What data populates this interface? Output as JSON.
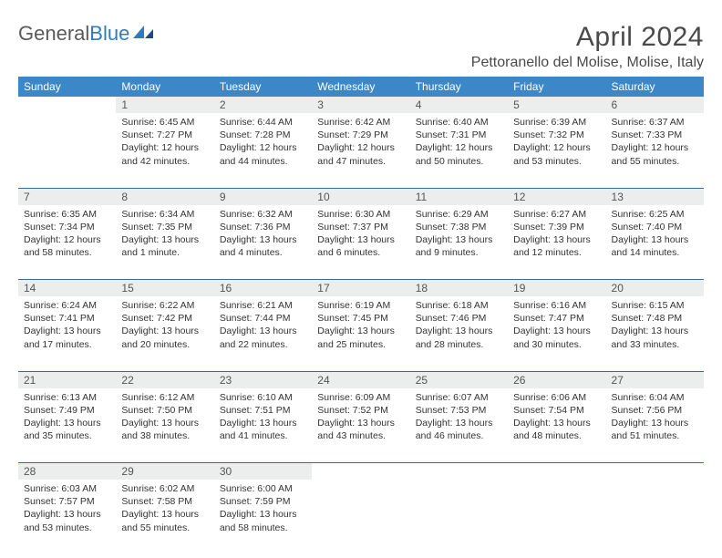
{
  "logo": {
    "text_gray": "General",
    "text_blue": "Blue"
  },
  "title": "April 2024",
  "location": "Pettoranello del Molise, Molise, Italy",
  "colors": {
    "header_bg": "#3b87c8",
    "header_text": "#ffffff",
    "daynum_bg": "#eceded",
    "row_divider": "#3b6a94",
    "logo_gray": "#5a5a5a",
    "logo_blue": "#2f7bbf",
    "body_text": "#333333"
  },
  "day_headers": [
    "Sunday",
    "Monday",
    "Tuesday",
    "Wednesday",
    "Thursday",
    "Friday",
    "Saturday"
  ],
  "weeks": [
    [
      {
        "n": "",
        "sr": "",
        "ss": "",
        "dl": ""
      },
      {
        "n": "1",
        "sr": "Sunrise: 6:45 AM",
        "ss": "Sunset: 7:27 PM",
        "dl": "Daylight: 12 hours and 42 minutes."
      },
      {
        "n": "2",
        "sr": "Sunrise: 6:44 AM",
        "ss": "Sunset: 7:28 PM",
        "dl": "Daylight: 12 hours and 44 minutes."
      },
      {
        "n": "3",
        "sr": "Sunrise: 6:42 AM",
        "ss": "Sunset: 7:29 PM",
        "dl": "Daylight: 12 hours and 47 minutes."
      },
      {
        "n": "4",
        "sr": "Sunrise: 6:40 AM",
        "ss": "Sunset: 7:31 PM",
        "dl": "Daylight: 12 hours and 50 minutes."
      },
      {
        "n": "5",
        "sr": "Sunrise: 6:39 AM",
        "ss": "Sunset: 7:32 PM",
        "dl": "Daylight: 12 hours and 53 minutes."
      },
      {
        "n": "6",
        "sr": "Sunrise: 6:37 AM",
        "ss": "Sunset: 7:33 PM",
        "dl": "Daylight: 12 hours and 55 minutes."
      }
    ],
    [
      {
        "n": "7",
        "sr": "Sunrise: 6:35 AM",
        "ss": "Sunset: 7:34 PM",
        "dl": "Daylight: 12 hours and 58 minutes."
      },
      {
        "n": "8",
        "sr": "Sunrise: 6:34 AM",
        "ss": "Sunset: 7:35 PM",
        "dl": "Daylight: 13 hours and 1 minute."
      },
      {
        "n": "9",
        "sr": "Sunrise: 6:32 AM",
        "ss": "Sunset: 7:36 PM",
        "dl": "Daylight: 13 hours and 4 minutes."
      },
      {
        "n": "10",
        "sr": "Sunrise: 6:30 AM",
        "ss": "Sunset: 7:37 PM",
        "dl": "Daylight: 13 hours and 6 minutes."
      },
      {
        "n": "11",
        "sr": "Sunrise: 6:29 AM",
        "ss": "Sunset: 7:38 PM",
        "dl": "Daylight: 13 hours and 9 minutes."
      },
      {
        "n": "12",
        "sr": "Sunrise: 6:27 AM",
        "ss": "Sunset: 7:39 PM",
        "dl": "Daylight: 13 hours and 12 minutes."
      },
      {
        "n": "13",
        "sr": "Sunrise: 6:25 AM",
        "ss": "Sunset: 7:40 PM",
        "dl": "Daylight: 13 hours and 14 minutes."
      }
    ],
    [
      {
        "n": "14",
        "sr": "Sunrise: 6:24 AM",
        "ss": "Sunset: 7:41 PM",
        "dl": "Daylight: 13 hours and 17 minutes."
      },
      {
        "n": "15",
        "sr": "Sunrise: 6:22 AM",
        "ss": "Sunset: 7:42 PM",
        "dl": "Daylight: 13 hours and 20 minutes."
      },
      {
        "n": "16",
        "sr": "Sunrise: 6:21 AM",
        "ss": "Sunset: 7:44 PM",
        "dl": "Daylight: 13 hours and 22 minutes."
      },
      {
        "n": "17",
        "sr": "Sunrise: 6:19 AM",
        "ss": "Sunset: 7:45 PM",
        "dl": "Daylight: 13 hours and 25 minutes."
      },
      {
        "n": "18",
        "sr": "Sunrise: 6:18 AM",
        "ss": "Sunset: 7:46 PM",
        "dl": "Daylight: 13 hours and 28 minutes."
      },
      {
        "n": "19",
        "sr": "Sunrise: 6:16 AM",
        "ss": "Sunset: 7:47 PM",
        "dl": "Daylight: 13 hours and 30 minutes."
      },
      {
        "n": "20",
        "sr": "Sunrise: 6:15 AM",
        "ss": "Sunset: 7:48 PM",
        "dl": "Daylight: 13 hours and 33 minutes."
      }
    ],
    [
      {
        "n": "21",
        "sr": "Sunrise: 6:13 AM",
        "ss": "Sunset: 7:49 PM",
        "dl": "Daylight: 13 hours and 35 minutes."
      },
      {
        "n": "22",
        "sr": "Sunrise: 6:12 AM",
        "ss": "Sunset: 7:50 PM",
        "dl": "Daylight: 13 hours and 38 minutes."
      },
      {
        "n": "23",
        "sr": "Sunrise: 6:10 AM",
        "ss": "Sunset: 7:51 PM",
        "dl": "Daylight: 13 hours and 41 minutes."
      },
      {
        "n": "24",
        "sr": "Sunrise: 6:09 AM",
        "ss": "Sunset: 7:52 PM",
        "dl": "Daylight: 13 hours and 43 minutes."
      },
      {
        "n": "25",
        "sr": "Sunrise: 6:07 AM",
        "ss": "Sunset: 7:53 PM",
        "dl": "Daylight: 13 hours and 46 minutes."
      },
      {
        "n": "26",
        "sr": "Sunrise: 6:06 AM",
        "ss": "Sunset: 7:54 PM",
        "dl": "Daylight: 13 hours and 48 minutes."
      },
      {
        "n": "27",
        "sr": "Sunrise: 6:04 AM",
        "ss": "Sunset: 7:56 PM",
        "dl": "Daylight: 13 hours and 51 minutes."
      }
    ],
    [
      {
        "n": "28",
        "sr": "Sunrise: 6:03 AM",
        "ss": "Sunset: 7:57 PM",
        "dl": "Daylight: 13 hours and 53 minutes."
      },
      {
        "n": "29",
        "sr": "Sunrise: 6:02 AM",
        "ss": "Sunset: 7:58 PM",
        "dl": "Daylight: 13 hours and 55 minutes."
      },
      {
        "n": "30",
        "sr": "Sunrise: 6:00 AM",
        "ss": "Sunset: 7:59 PM",
        "dl": "Daylight: 13 hours and 58 minutes."
      },
      {
        "n": "",
        "sr": "",
        "ss": "",
        "dl": ""
      },
      {
        "n": "",
        "sr": "",
        "ss": "",
        "dl": ""
      },
      {
        "n": "",
        "sr": "",
        "ss": "",
        "dl": ""
      },
      {
        "n": "",
        "sr": "",
        "ss": "",
        "dl": ""
      }
    ]
  ]
}
